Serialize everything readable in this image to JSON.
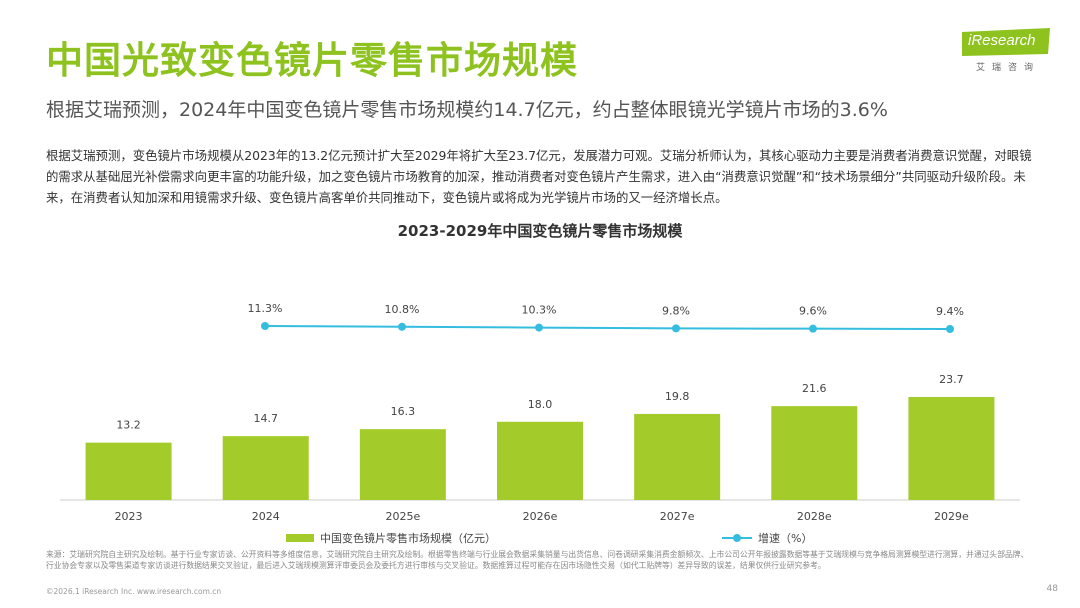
{
  "header": {
    "title": "中国光致变色镜片零售市场规模",
    "subtitle": "根据艾瑞预测，2024年中国变色镜片零售市场规模约14.7亿元，约占整体眼镜光学镜片市场的3.6%",
    "intro": "根据艾瑞预测，变色镜片市场规模从2023年的13.2亿元预计扩大至2029年将扩大至23.7亿元，发展潜力可观。艾瑞分析师认为，其核心驱动力主要是消费者消费意识觉醒，对眼镜的需求从基础屈光补偿需求向更丰富的功能升级，加之变色镜片市场教育的加深，推动消费者对变色镜片产生需求，进入由“消费意识觉醒”和“技术场景细分”共同驱动升级阶段。未来，在消费者认知加深和用镜需求升级、变色镜片高客单价共同推动下，变色镜片或将成为光学镜片市场的又一经济增长点。"
  },
  "logo": {
    "text": "iResearch",
    "sub": "艾瑞咨询",
    "color": "#8dc21f"
  },
  "chart_data": {
    "type": "bar",
    "title": "2023-2029年中国变色镜片零售市场规模",
    "categories": [
      "2023",
      "2024",
      "2025e",
      "2026e",
      "2027e",
      "2028e",
      "2029e"
    ],
    "series": [
      {
        "name": "中国变色镜片零售市场规模（亿元）",
        "type": "bar",
        "color": "#a3cc2a",
        "values": [
          13.2,
          14.7,
          16.3,
          18.0,
          19.8,
          21.6,
          23.7
        ],
        "labels": [
          "13.2",
          "14.7",
          "16.3",
          "18.0",
          "19.8",
          "21.6",
          "23.7"
        ]
      },
      {
        "name": "增速（%）",
        "type": "line",
        "color": "#35bde0",
        "x": [
          "2024",
          "2025e",
          "2026e",
          "2027e",
          "2028e",
          "2029e"
        ],
        "values": [
          11.3,
          10.8,
          10.3,
          9.8,
          9.6,
          9.4
        ],
        "labels": [
          "11.3%",
          "10.8%",
          "10.3%",
          "9.8%",
          "9.6%",
          "9.4%"
        ]
      }
    ],
    "legend_position": "bottom",
    "grid": false
  },
  "footer": {
    "source": "来源：艾瑞研究院自主研究及绘制。基于行业专家访谈、公开资料等多维度信息，艾瑞研究院自主研究及绘制。根据零售终端与行业展会数据采集销量与出货信息、问卷调研采集消费金额频次、上市公司公开年报披露数据等基于艾瑞规模与竞争格局测算模型进行测算，并通过头部品牌、行业协会专家以及零售渠道专家访谈进行数据结果交叉验证，最后进入艾瑞规模测算评审委员会及委托方进行审核与交叉验证。数据推算过程可能存在因市场隐性交易（如代工贴牌等）差异导致的误差，结果仅供行业研究参考。",
    "copyright": "©2026.1 iResearch Inc.                    www.iresearch.com.cn",
    "page_number": "48"
  }
}
